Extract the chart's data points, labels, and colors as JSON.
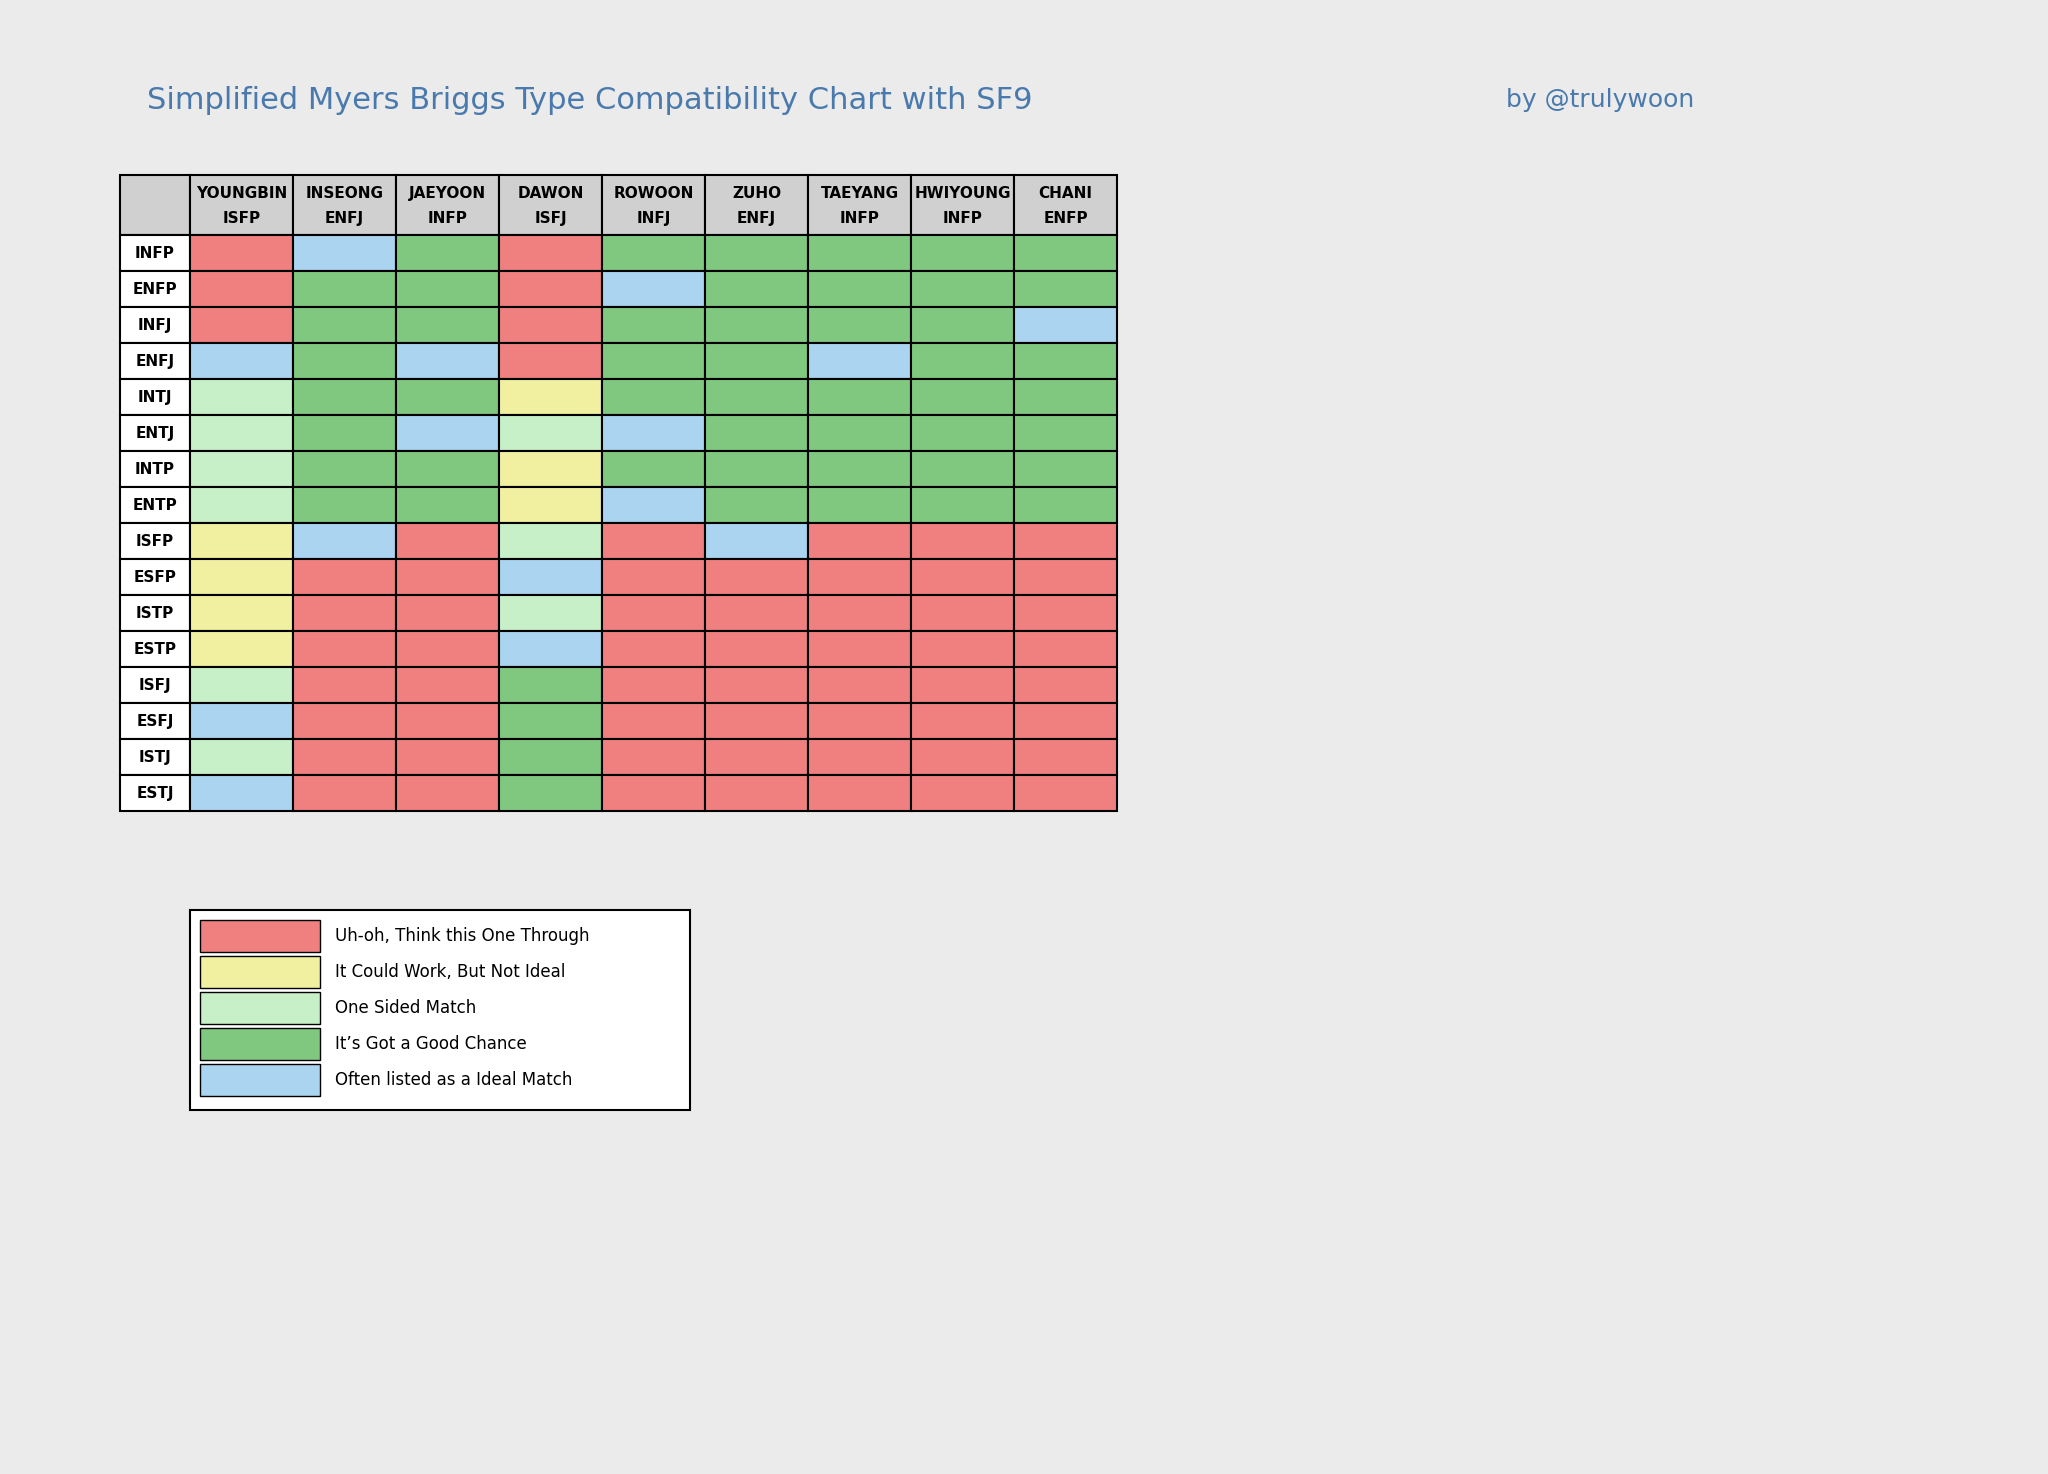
{
  "title": "Simplified Myers Briggs Type Compatibility Chart with SF9",
  "credit": "by @trulywoon",
  "background_color": "#ebebeb",
  "title_color": "#4a7aad",
  "columns": [
    "YOUNGBIN\nISFP",
    "INSEONG\nENFJ",
    "JAEYOON\nINFP",
    "DAWON\nISFJ",
    "ROWOON\nINFJ",
    "ZUHO\nENFJ",
    "TAEYANG\nINFP",
    "HWIYOUNG\nINFP",
    "CHANI\nENFP"
  ],
  "rows": [
    "INFP",
    "ENFP",
    "INFJ",
    "ENFJ",
    "INTJ",
    "ENTJ",
    "INTP",
    "ENTP",
    "ISFP",
    "ESFP",
    "ISTP",
    "ESTP",
    "ISFJ",
    "ESFJ",
    "ISTJ",
    "ESTJ"
  ],
  "colors": {
    "red": "#f08080",
    "yellow": "#f0f0a0",
    "lightgreen": "#c8f0c8",
    "green": "#80c880",
    "blue": "#aad4f0",
    "gray": "#d0d0d0",
    "white": "#ffffff"
  },
  "legend": [
    {
      "color": "#f08080",
      "label": "Uh-oh, Think this One Through"
    },
    {
      "color": "#f0f0a0",
      "label": "It Could Work, But Not Ideal"
    },
    {
      "color": "#c8f0c8",
      "label": "One Sided Match"
    },
    {
      "color": "#80c880",
      "label": "It’s Got a Good Chance"
    },
    {
      "color": "#aad4f0",
      "label": "Often listed as a Ideal Match"
    }
  ],
  "grid": [
    [
      "red",
      "blue",
      "green",
      "red",
      "green",
      "green",
      "green",
      "green",
      "green"
    ],
    [
      "red",
      "green",
      "green",
      "red",
      "blue",
      "green",
      "green",
      "green",
      "green"
    ],
    [
      "red",
      "green",
      "green",
      "red",
      "green",
      "green",
      "green",
      "green",
      "blue"
    ],
    [
      "blue",
      "green",
      "blue",
      "red",
      "green",
      "green",
      "blue",
      "green",
      "green"
    ],
    [
      "lightgreen",
      "green",
      "green",
      "yellow",
      "green",
      "green",
      "green",
      "green",
      "green"
    ],
    [
      "lightgreen",
      "green",
      "blue",
      "lightgreen",
      "blue",
      "green",
      "green",
      "green",
      "green"
    ],
    [
      "lightgreen",
      "green",
      "green",
      "yellow",
      "green",
      "green",
      "green",
      "green",
      "green"
    ],
    [
      "lightgreen",
      "green",
      "green",
      "yellow",
      "blue",
      "green",
      "green",
      "green",
      "green"
    ],
    [
      "yellow",
      "blue",
      "red",
      "lightgreen",
      "red",
      "blue",
      "red",
      "red",
      "red"
    ],
    [
      "yellow",
      "red",
      "red",
      "blue",
      "red",
      "red",
      "red",
      "red",
      "red"
    ],
    [
      "yellow",
      "red",
      "red",
      "lightgreen",
      "red",
      "red",
      "red",
      "red",
      "red"
    ],
    [
      "yellow",
      "red",
      "red",
      "blue",
      "red",
      "red",
      "red",
      "red",
      "red"
    ],
    [
      "lightgreen",
      "red",
      "red",
      "green",
      "red",
      "red",
      "red",
      "red",
      "red"
    ],
    [
      "blue",
      "red",
      "red",
      "green",
      "red",
      "red",
      "red",
      "red",
      "red"
    ],
    [
      "lightgreen",
      "red",
      "red",
      "green",
      "red",
      "red",
      "red",
      "red",
      "red"
    ],
    [
      "blue",
      "red",
      "red",
      "green",
      "red",
      "red",
      "red",
      "red",
      "red"
    ]
  ]
}
